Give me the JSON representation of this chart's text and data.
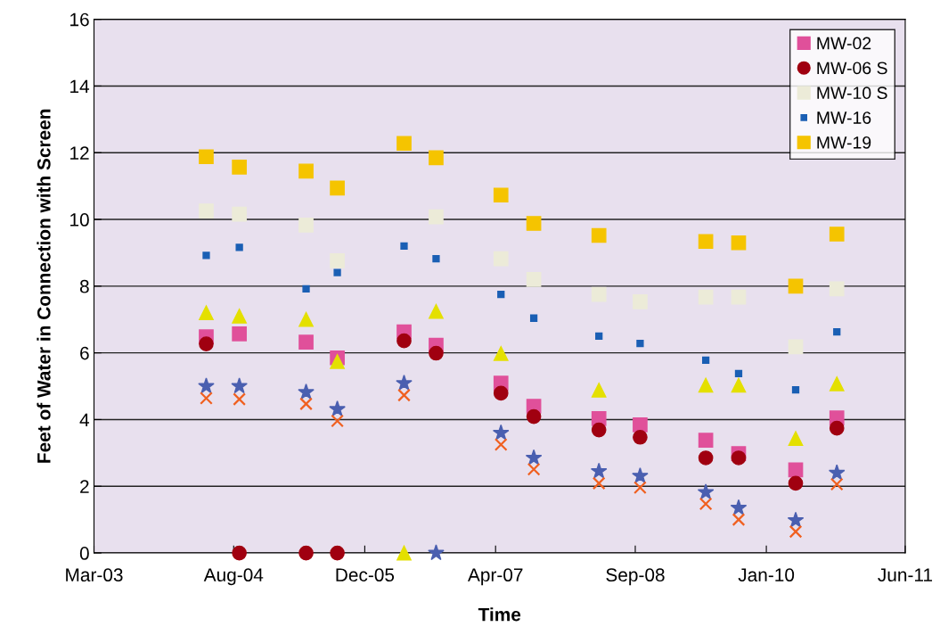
{
  "chart_data": {
    "type": "scatter",
    "xlabel": "Time",
    "ylabel": "Feet of Water in Connection with Screen",
    "x": [
      "2004-04-21",
      "2004-08-22",
      "2005-04-27",
      "2005-08-21",
      "2006-04-26",
      "2006-08-23",
      "2007-04-21",
      "2007-08-21",
      "2008-04-19",
      "2008-09-19",
      "2009-05-21",
      "2009-09-20",
      "2010-04-20",
      "2010-09-20"
    ],
    "series": [
      {
        "name": "MW-02",
        "color": "#e0509a",
        "marker": "square",
        "values": [
          6.48,
          6.57,
          6.32,
          5.85,
          6.63,
          6.23,
          5.09,
          4.4,
          4.03,
          3.84,
          3.38,
          2.98,
          2.49,
          4.05
        ]
      },
      {
        "name": "MW-06 S",
        "color": "#a00010",
        "marker": "circle",
        "values": [
          6.27,
          0,
          0,
          0,
          6.36,
          5.99,
          4.79,
          4.09,
          3.69,
          3.47,
          2.85,
          2.85,
          2.09,
          3.74
        ]
      },
      {
        "name": "MW-10 S",
        "color": "#ecebd8",
        "marker": "square",
        "values": [
          10.25,
          10.16,
          9.83,
          8.76,
          null,
          10.08,
          8.82,
          8.2,
          7.75,
          7.53,
          7.67,
          7.67,
          6.18,
          7.92
        ]
      },
      {
        "name": "MW-16",
        "color": "#1a5fb4",
        "marker": "square",
        "values": [
          8.92,
          9.16,
          7.92,
          8.41,
          9.2,
          8.82,
          7.75,
          7.04,
          6.5,
          6.28,
          5.78,
          5.38,
          4.89,
          6.63
        ]
      },
      {
        "name": "MW-19",
        "color": "#f5c400",
        "marker": "square",
        "values": [
          11.88,
          11.57,
          11.45,
          10.94,
          12.28,
          11.85,
          10.73,
          9.88,
          9.52,
          null,
          9.34,
          9.3,
          8.0,
          9.56
        ]
      },
      {
        "color": "#e4e000",
        "marker": "triangle",
        "values": [
          7.2,
          7.1,
          7.0,
          5.74,
          0,
          7.24,
          5.98,
          null,
          4.88,
          null,
          5.03,
          5.03,
          3.43,
          5.07
        ]
      },
      {
        "color": "#4a5fb0",
        "marker": "star",
        "values": [
          5.0,
          5.0,
          4.82,
          4.31,
          5.09,
          0,
          3.6,
          2.85,
          2.45,
          2.31,
          1.82,
          1.35,
          0.98,
          2.4
        ]
      },
      {
        "color": "#f06020",
        "marker": "cross",
        "values": [
          4.64,
          4.61,
          4.47,
          3.96,
          4.73,
          null,
          3.25,
          2.51,
          2.09,
          1.96,
          1.47,
          1.0,
          0.64,
          2.06
        ]
      }
    ],
    "xlim": [
      "2003-03-01",
      "2011-06-01"
    ],
    "xticks": [
      {
        "value": "2003-03-01",
        "label": "Mar-03"
      },
      {
        "value": "2004-08-01",
        "label": "Aug-04"
      },
      {
        "value": "2005-12-01",
        "label": "Dec-05"
      },
      {
        "value": "2007-04-01",
        "label": "Apr-07"
      },
      {
        "value": "2008-09-01",
        "label": "Sep-08"
      },
      {
        "value": "2010-01-01",
        "label": "Jan-10"
      },
      {
        "value": "2011-06-01",
        "label": "Jun-11"
      }
    ],
    "ylim": [
      0,
      16
    ],
    "yticks": [
      0,
      2,
      4,
      6,
      8,
      10,
      12,
      14,
      16
    ],
    "grid": "y",
    "legend": "top right"
  }
}
